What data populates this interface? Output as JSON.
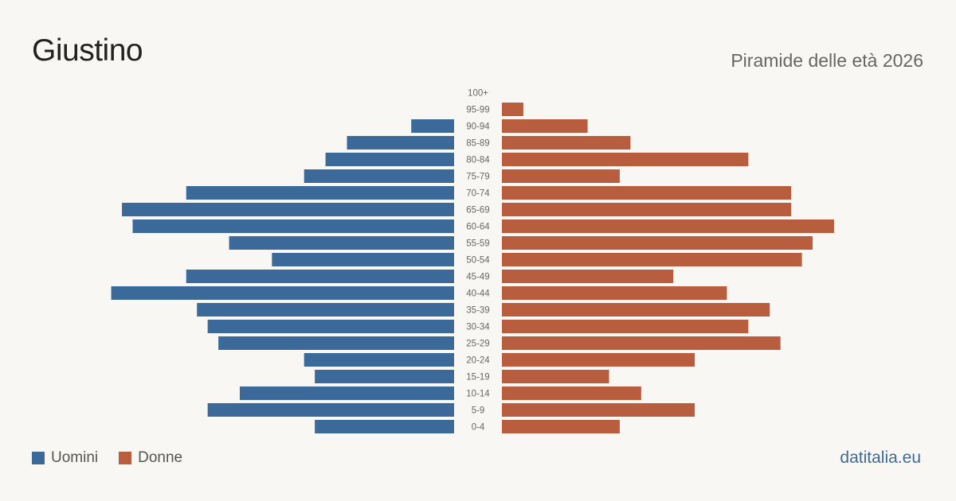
{
  "header": {
    "title": "Giustino",
    "subtitle": "Piramide delle età 2026"
  },
  "legend": {
    "male_label": "Uomini",
    "female_label": "Donne"
  },
  "footer": {
    "brand": "datitalia.eu"
  },
  "colors": {
    "male": "#3b6a9a",
    "female": "#b85e3e",
    "background": "#f9f7f3"
  },
  "chart_data": {
    "type": "bar",
    "orientation": "horizontal-pyramid",
    "categories": [
      "100+",
      "95-99",
      "90-94",
      "85-89",
      "80-84",
      "75-79",
      "70-74",
      "65-69",
      "60-64",
      "55-59",
      "50-54",
      "45-49",
      "40-44",
      "35-39",
      "30-34",
      "25-29",
      "20-24",
      "15-19",
      "10-14",
      "5-9",
      "0-4"
    ],
    "series": [
      {
        "name": "Uomini",
        "values": [
          0,
          0,
          4,
          10,
          12,
          14,
          25,
          31,
          30,
          21,
          17,
          25,
          32,
          24,
          23,
          22,
          14,
          13,
          20,
          23,
          13
        ]
      },
      {
        "name": "Donne",
        "values": [
          0,
          2,
          8,
          12,
          23,
          11,
          27,
          27,
          31,
          29,
          28,
          16,
          21,
          25,
          23,
          26,
          18,
          10,
          13,
          18,
          11
        ]
      }
    ],
    "legend_position": "bottom-left",
    "grid": false
  }
}
